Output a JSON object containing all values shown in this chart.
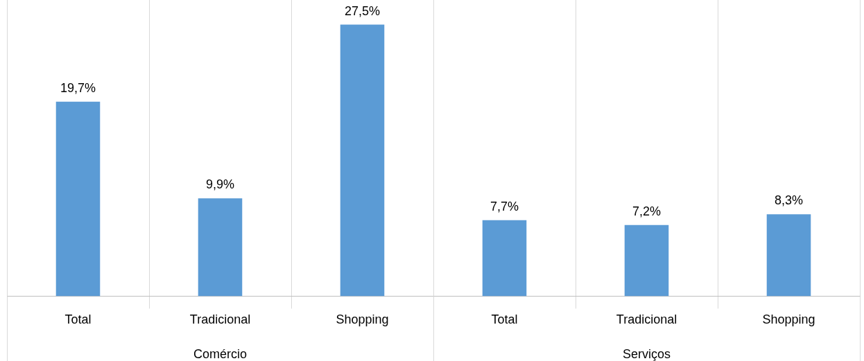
{
  "chart_data": {
    "type": "bar",
    "categories": [
      "Total",
      "Tradicional",
      "Shopping",
      "Total",
      "Tradicional",
      "Shopping"
    ],
    "values": [
      19.7,
      9.9,
      27.5,
      7.7,
      7.2,
      8.3
    ],
    "value_labels": [
      "19,7%",
      "9,9%",
      "27,5%",
      "7,7%",
      "7,2%",
      "8,3%"
    ],
    "color": "#5b9bd5",
    "grid": "x",
    "legend": false,
    "tick_labels": "x",
    "annotations": [
      "Comércio",
      "Serviços"
    ]
  }
}
